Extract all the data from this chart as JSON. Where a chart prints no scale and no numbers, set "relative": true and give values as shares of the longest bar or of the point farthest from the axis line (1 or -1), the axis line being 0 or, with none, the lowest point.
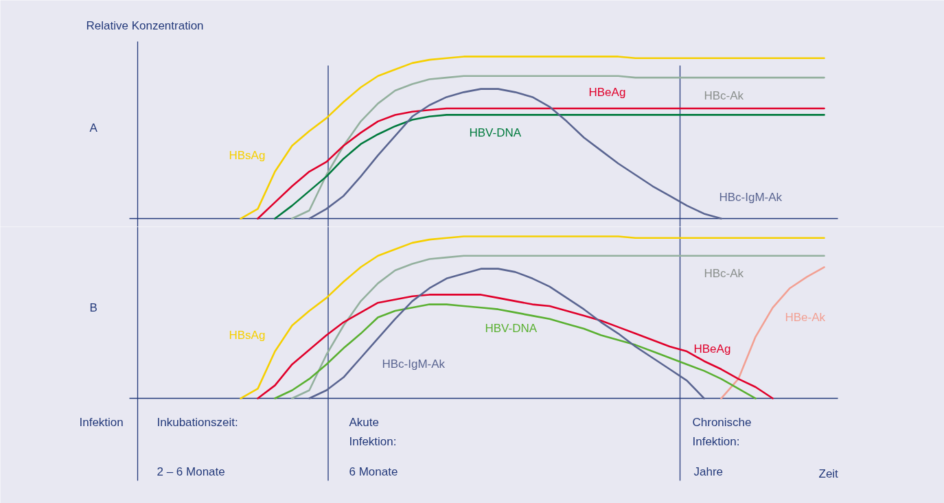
{
  "chart_data": [
    {
      "type": "line",
      "title": "A",
      "ylabel": "Relative Konzentration",
      "relative": true,
      "categories": [
        null,
        null,
        null,
        null,
        null,
        null,
        null,
        null,
        null,
        null,
        null,
        null,
        null,
        null,
        null,
        null,
        null,
        null,
        null,
        null,
        null,
        null,
        null,
        null,
        null,
        null,
        null,
        null,
        null,
        null,
        null,
        null,
        null,
        null,
        null,
        null,
        null,
        null,
        null,
        null,
        null
      ],
      "series": [
        {
          "name": "HBsAg",
          "color": "#f5cf00",
          "values": [
            null,
            null,
            null,
            null,
            null,
            null,
            0,
            0.06,
            0.29,
            0.45,
            0.54,
            0.62,
            0.72,
            0.81,
            0.88,
            0.92,
            0.96,
            0.98,
            0.99,
            1,
            1,
            1,
            1,
            1,
            1,
            1,
            1,
            1,
            1,
            0.99,
            0.99,
            0.99,
            0.99,
            0.99,
            0.99,
            0.99,
            0.99,
            0.99,
            0.99,
            0.99,
            0.99
          ]
        },
        {
          "name": "HBc-Ak",
          "color": "#93b09e",
          "values": [
            null,
            null,
            null,
            null,
            null,
            null,
            null,
            null,
            null,
            0,
            0.05,
            0.27,
            0.45,
            0.6,
            0.71,
            0.79,
            0.83,
            0.86,
            0.87,
            0.88,
            0.88,
            0.88,
            0.88,
            0.88,
            0.88,
            0.88,
            0.88,
            0.88,
            0.88,
            0.87,
            0.87,
            0.87,
            0.87,
            0.87,
            0.87,
            0.87,
            0.87,
            0.87,
            0.87,
            0.87,
            0.87
          ]
        },
        {
          "name": "HBeAg",
          "color": "#e0002a",
          "values": [
            null,
            null,
            null,
            null,
            null,
            null,
            null,
            0,
            0.1,
            0.2,
            0.29,
            0.35,
            0.45,
            0.53,
            0.6,
            0.64,
            0.66,
            0.67,
            0.68,
            0.68,
            0.68,
            0.68,
            0.68,
            0.68,
            0.68,
            0.68,
            0.68,
            0.68,
            0.68,
            0.68,
            0.68,
            0.68,
            0.68,
            0.68,
            0.68,
            0.68,
            0.68,
            0.68,
            0.68,
            0.68,
            0.68
          ]
        },
        {
          "name": "HBV-DNA",
          "color": "#007a3d",
          "values": [
            null,
            null,
            null,
            null,
            null,
            null,
            null,
            null,
            0,
            0.08,
            0.17,
            0.26,
            0.37,
            0.46,
            0.52,
            0.57,
            0.61,
            0.63,
            0.64,
            0.64,
            0.64,
            0.64,
            0.64,
            0.64,
            0.64,
            0.64,
            0.64,
            0.64,
            0.64,
            0.64,
            0.64,
            0.64,
            0.64,
            0.64,
            0.64,
            0.64,
            0.64,
            0.64,
            0.64,
            0.64,
            0.64
          ]
        },
        {
          "name": "HBc-IgM-Ak",
          "color": "#5a6591",
          "values": [
            null,
            null,
            null,
            null,
            null,
            null,
            null,
            null,
            null,
            null,
            0,
            0.06,
            0.14,
            0.26,
            0.39,
            0.51,
            0.63,
            0.7,
            0.75,
            0.78,
            0.8,
            0.8,
            0.78,
            0.75,
            0.69,
            0.6,
            0.5,
            0.42,
            0.34,
            0.27,
            0.2,
            0.14,
            0.08,
            0.03,
            0,
            null,
            null,
            null,
            null,
            null,
            null
          ]
        }
      ]
    },
    {
      "type": "line",
      "title": "B",
      "xlabel": "Zeit",
      "relative": true,
      "categories": [
        null,
        null,
        null,
        null,
        null,
        null,
        null,
        null,
        null,
        null,
        null,
        null,
        null,
        null,
        null,
        null,
        null,
        null,
        null,
        null,
        null,
        null,
        null,
        null,
        null,
        null,
        null,
        null,
        null,
        null,
        null,
        null,
        null,
        null,
        null,
        null,
        null,
        null,
        null,
        null,
        null
      ],
      "series": [
        {
          "name": "HBsAg",
          "color": "#f5cf00",
          "values": [
            null,
            null,
            null,
            null,
            null,
            null,
            0,
            0.06,
            0.29,
            0.45,
            0.54,
            0.62,
            0.72,
            0.81,
            0.88,
            0.92,
            0.96,
            0.98,
            0.99,
            1,
            1,
            1,
            1,
            1,
            1,
            1,
            1,
            1,
            1,
            0.99,
            0.99,
            0.99,
            0.99,
            0.99,
            0.99,
            0.99,
            0.99,
            0.99,
            0.99,
            0.99,
            0.99
          ]
        },
        {
          "name": "HBc-Ak",
          "color": "#93b09e",
          "values": [
            null,
            null,
            null,
            null,
            null,
            null,
            null,
            null,
            null,
            0,
            0.05,
            0.27,
            0.45,
            0.6,
            0.71,
            0.79,
            0.83,
            0.86,
            0.87,
            0.88,
            0.88,
            0.88,
            0.88,
            0.88,
            0.88,
            0.88,
            0.88,
            0.88,
            0.88,
            0.88,
            0.88,
            0.88,
            0.88,
            0.88,
            0.88,
            0.88,
            0.88,
            0.88,
            0.88,
            0.88,
            0.88
          ]
        },
        {
          "name": "HBe-Ak",
          "color": "#f2a093",
          "values": [
            null,
            null,
            null,
            null,
            null,
            null,
            null,
            null,
            null,
            null,
            null,
            null,
            null,
            null,
            null,
            null,
            null,
            null,
            null,
            null,
            null,
            null,
            null,
            null,
            null,
            null,
            null,
            null,
            null,
            null,
            null,
            null,
            null,
            null,
            0,
            0.12,
            0.38,
            0.56,
            0.68,
            0.75,
            0.81
          ]
        },
        {
          "name": "HBV-DNA",
          "color": "#5ab031",
          "values": [
            null,
            null,
            null,
            null,
            null,
            null,
            null,
            null,
            0,
            0.05,
            0.12,
            0.21,
            0.31,
            0.4,
            0.5,
            0.54,
            0.56,
            0.58,
            0.58,
            0.57,
            0.56,
            0.55,
            0.53,
            0.51,
            0.49,
            0.46,
            0.43,
            0.39,
            0.36,
            0.33,
            0.29,
            0.25,
            0.21,
            0.17,
            0.12,
            0.06,
            0,
            null,
            null,
            null,
            null
          ]
        },
        {
          "name": "HBeAg",
          "color": "#e0002a",
          "values": [
            null,
            null,
            null,
            null,
            null,
            null,
            null,
            0,
            0.08,
            0.21,
            0.3,
            0.39,
            0.47,
            0.53,
            0.59,
            0.61,
            0.63,
            0.64,
            0.64,
            0.64,
            0.64,
            0.62,
            0.6,
            0.58,
            0.57,
            0.54,
            0.51,
            0.48,
            0.44,
            0.4,
            0.36,
            0.32,
            0.29,
            0.23,
            0.18,
            0.12,
            0.07,
            0,
            null,
            null,
            null
          ]
        },
        {
          "name": "HBc-IgM-Ak",
          "color": "#5a6591",
          "values": [
            null,
            null,
            null,
            null,
            null,
            null,
            null,
            null,
            null,
            null,
            0,
            0.05,
            0.13,
            0.25,
            0.37,
            0.49,
            0.6,
            0.68,
            0.74,
            0.77,
            0.8,
            0.8,
            0.78,
            0.74,
            0.69,
            0.62,
            0.55,
            0.47,
            0.4,
            0.32,
            0.25,
            0.18,
            0.11,
            0,
            null,
            null,
            null,
            null,
            null,
            null,
            null
          ]
        }
      ],
      "annotations": [
        "Infektion",
        "Inkubationszeit:",
        "2 – 6 Monate",
        "Akute\nInfektion:",
        "6 Monate",
        "Chronische\nInfektion:",
        "Jahre"
      ]
    }
  ]
}
